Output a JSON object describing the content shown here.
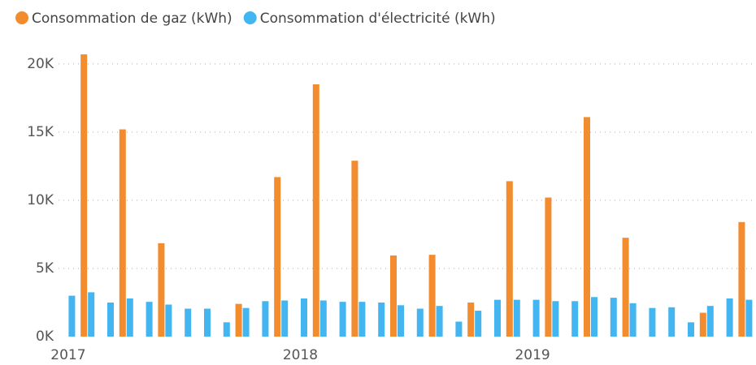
{
  "chart_data": {
    "type": "bar",
    "categories": [
      "2017",
      null,
      null,
      null,
      null,
      null,
      null,
      null,
      null,
      null,
      null,
      null,
      "2018",
      null,
      null,
      null,
      null,
      null,
      null,
      null,
      null,
      null,
      null,
      null,
      "2019",
      null,
      null,
      null,
      null,
      null,
      null,
      null,
      null,
      null,
      null,
      null
    ],
    "series": [
      {
        "name": "Consommation de gaz (kWh)",
        "color": "#F28C2E",
        "values": [
          null,
          20700,
          null,
          15200,
          null,
          6850,
          null,
          null,
          null,
          2400,
          null,
          11700,
          null,
          18500,
          null,
          12900,
          null,
          5950,
          null,
          6000,
          null,
          2500,
          null,
          11400,
          null,
          10200,
          null,
          16100,
          null,
          7250,
          null,
          null,
          null,
          1750,
          null,
          8400
        ]
      },
      {
        "name": "Consommation d'électricité (kWh)",
        "color": "#43B5F0",
        "values": [
          3000,
          3250,
          2500,
          2800,
          2550,
          2350,
          2050,
          2050,
          1050,
          2100,
          2600,
          2650,
          2800,
          2650,
          2550,
          2550,
          2500,
          2300,
          2050,
          2250,
          1100,
          1900,
          2700,
          2700,
          2700,
          2600,
          2600,
          2900,
          2850,
          2450,
          2100,
          2150,
          1050,
          2250,
          2800,
          2700
        ]
      }
    ],
    "ylim": [
      0,
      21000
    ],
    "yticks": [
      {
        "value": 0,
        "label": "0K"
      },
      {
        "value": 5000,
        "label": "5K"
      },
      {
        "value": 10000,
        "label": "10K"
      },
      {
        "value": 15000,
        "label": "15K"
      },
      {
        "value": 20000,
        "label": "20K"
      }
    ],
    "grid": true
  }
}
